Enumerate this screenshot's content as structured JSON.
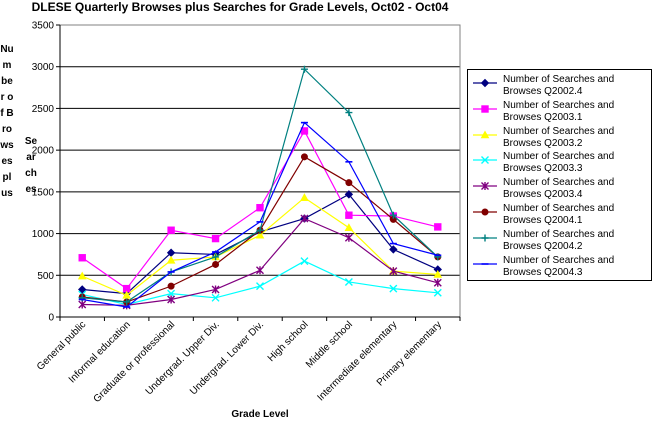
{
  "chart_data": {
    "type": "line",
    "title": "DLESE Quarterly Browses plus Searches for Grade Levels, Oct02 - Oct04",
    "xlabel": "Grade Level",
    "ylabel": "Number of Browses plus Searches",
    "ylabel_col1": "Number of Browses plus",
    "ylabel_col2": "Searches",
    "ylim": [
      0,
      3500
    ],
    "yticks": [
      "0",
      "500",
      "1000",
      "1500",
      "2000",
      "2500",
      "3000",
      "3500"
    ],
    "grid": "horizontal",
    "legend_position": "right",
    "categories": [
      "General public",
      "Informal education",
      "Graduate or professional",
      "Undergrad. Upper Div.",
      "Undergrad. Lower Div.",
      "High school",
      "Middle school",
      "Intermediate elementary",
      "Primary elementary"
    ],
    "series": [
      {
        "name": "Number of Searches and Browses Q2002.4",
        "color": "#000080",
        "marker": "diamond",
        "values": [
          330,
          280,
          770,
          750,
          1020,
          1180,
          1470,
          810,
          570
        ]
      },
      {
        "name": "Number of Searches and Browses Q2003.1",
        "color": "#FF00FF",
        "marker": "square",
        "values": [
          710,
          340,
          1040,
          940,
          1310,
          2230,
          1220,
          1210,
          1080
        ]
      },
      {
        "name": "Number of Searches and Browses Q2003.2",
        "color": "#FFFF00",
        "marker": "triangle",
        "values": [
          490,
          260,
          680,
          720,
          980,
          1430,
          1070,
          550,
          510
        ]
      },
      {
        "name": "Number of Searches and Browses Q2003.3",
        "color": "#00FFFF",
        "marker": "x",
        "values": [
          270,
          150,
          280,
          230,
          370,
          670,
          420,
          340,
          290
        ]
      },
      {
        "name": "Number of Searches and Browses Q2003.4",
        "color": "#800080",
        "marker": "star",
        "values": [
          150,
          140,
          210,
          330,
          560,
          1180,
          950,
          550,
          410
        ]
      },
      {
        "name": "Number of Searches and Browses Q2004.1",
        "color": "#800000",
        "marker": "circle",
        "values": [
          240,
          180,
          370,
          630,
          1040,
          1920,
          1610,
          1170,
          720
        ]
      },
      {
        "name": "Number of Searches and Browses Q2004.2",
        "color": "#008080",
        "marker": "plus",
        "values": [
          230,
          180,
          540,
          720,
          1040,
          2970,
          2450,
          1220,
          720
        ]
      },
      {
        "name": "Number of Searches and Browses Q2004.3",
        "color": "#0000FF",
        "marker": "dash",
        "values": [
          210,
          120,
          540,
          780,
          1140,
          2330,
          1860,
          880,
          740
        ]
      }
    ]
  }
}
